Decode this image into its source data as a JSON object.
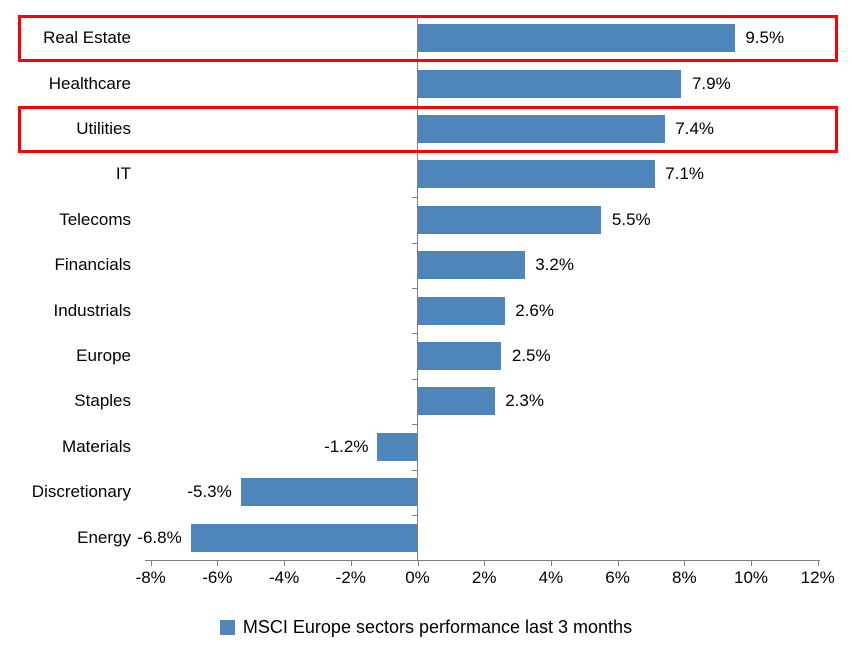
{
  "chart_data": {
    "type": "bar",
    "orientation": "horizontal",
    "categories": [
      "Real Estate",
      "Healthcare",
      "Utilities",
      "IT",
      "Telecoms",
      "Financials",
      "Industrials",
      "Europe",
      "Staples",
      "Materials",
      "Discretionary",
      "Energy"
    ],
    "values": [
      9.5,
      7.9,
      7.4,
      7.1,
      5.5,
      3.2,
      2.6,
      2.5,
      2.3,
      -1.2,
      -5.3,
      -6.8
    ],
    "value_labels": [
      "9.5%",
      "7.9%",
      "7.4%",
      "7.1%",
      "5.5%",
      "3.2%",
      "2.6%",
      "2.5%",
      "2.3%",
      "-1.2%",
      "-5.3%",
      "-6.8%"
    ],
    "xlim": [
      -8,
      12
    ],
    "x_ticks": [
      -8,
      -6,
      -4,
      -2,
      0,
      2,
      4,
      6,
      8,
      10,
      12
    ],
    "x_tick_labels": [
      "-8%",
      "-6%",
      "-4%",
      "-2%",
      "0%",
      "2%",
      "4%",
      "6%",
      "8%",
      "10%",
      "12%"
    ],
    "grid": false,
    "legend": "MSCI Europe sectors performance last 3 months",
    "legend_position": "bottom-center",
    "bar_color": "#4e86bc",
    "axis_color": "#808080",
    "text_color": "#000000",
    "highlight_color": "#ff0000",
    "background_color": "#ffffff",
    "highlighted_categories": [
      "Real Estate",
      "Utilities"
    ]
  }
}
